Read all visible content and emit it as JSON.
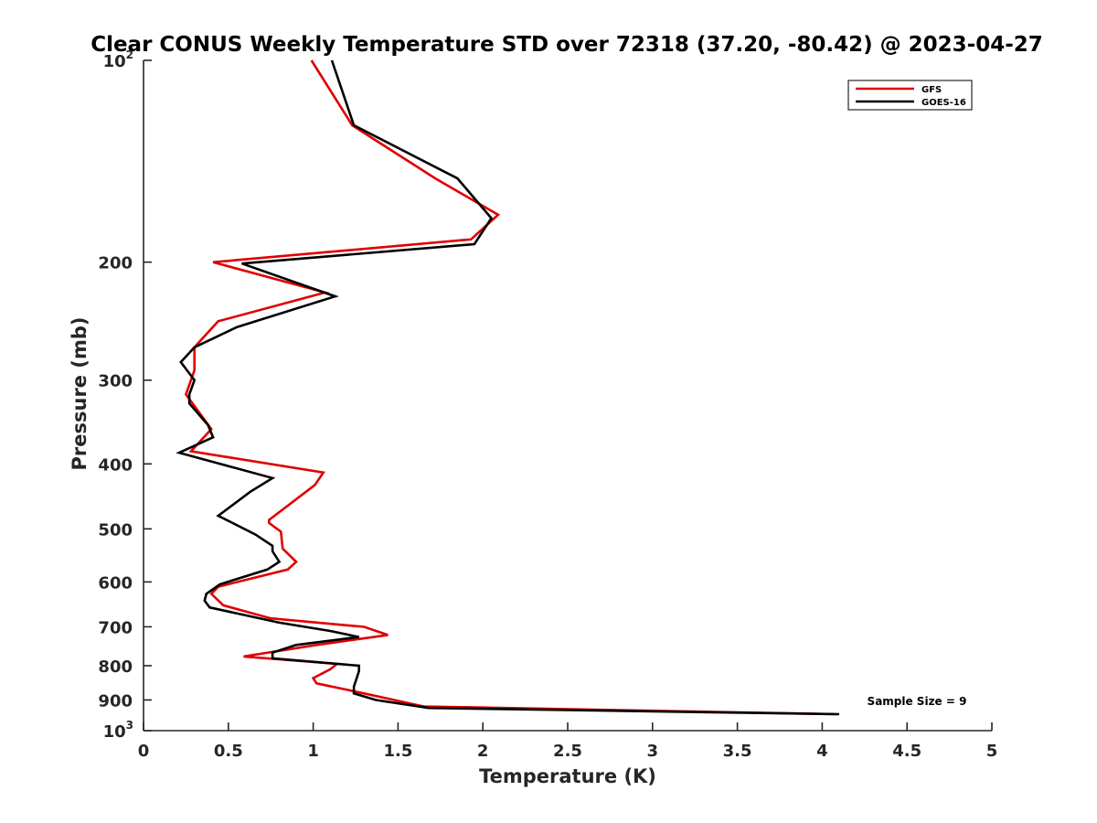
{
  "chart_data": {
    "type": "line",
    "title": "Clear CONUS Weekly Temperature STD over 72318 (37.20, -80.42) @ 2023-04-27",
    "xlabel": "Temperature (K)",
    "ylabel": "Pressure (mb)",
    "xlim": [
      0,
      5
    ],
    "ylim": [
      100,
      1000
    ],
    "y_scale": "log",
    "y_direction": "reversed",
    "x_ticks": [
      0,
      0.5,
      1,
      1.5,
      2,
      2.5,
      3,
      3.5,
      4,
      4.5,
      5
    ],
    "x_tick_labels": [
      "0",
      "0.5",
      "1",
      "1.5",
      "2",
      "2.5",
      "3",
      "3.5",
      "4",
      "4.5",
      "5"
    ],
    "y_ticks": [
      100,
      200,
      300,
      400,
      500,
      600,
      700,
      800,
      900,
      1000
    ],
    "y_tick_labels": [
      {
        "base": "10",
        "exp": "2"
      },
      {
        "base": "200"
      },
      {
        "base": "300"
      },
      {
        "base": "400"
      },
      {
        "base": "500"
      },
      {
        "base": "600"
      },
      {
        "base": "700"
      },
      {
        "base": "800"
      },
      {
        "base": "900"
      },
      {
        "base": "10",
        "exp": "3"
      }
    ],
    "grid": false,
    "legend_position": "top-right",
    "annotation": "Sample Size = 9",
    "series": [
      {
        "name": "GFS",
        "color": "#e00000",
        "points": [
          [
            0.99,
            100
          ],
          [
            1.23,
            125
          ],
          [
            1.72,
            150
          ],
          [
            2.09,
            170
          ],
          [
            1.93,
            185
          ],
          [
            0.41,
            200
          ],
          [
            1.07,
            222
          ],
          [
            0.44,
            245
          ],
          [
            0.3,
            268
          ],
          [
            0.3,
            290
          ],
          [
            0.25,
            315
          ],
          [
            0.4,
            355
          ],
          [
            0.28,
            383
          ],
          [
            1.06,
            412
          ],
          [
            1.01,
            430
          ],
          [
            0.74,
            485
          ],
          [
            0.74,
            490
          ],
          [
            0.81,
            505
          ],
          [
            0.82,
            535
          ],
          [
            0.9,
            560
          ],
          [
            0.85,
            575
          ],
          [
            0.44,
            610
          ],
          [
            0.4,
            625
          ],
          [
            0.47,
            650
          ],
          [
            0.75,
            680
          ],
          [
            1.3,
            700
          ],
          [
            1.44,
            720
          ],
          [
            1.02,
            745
          ],
          [
            0.59,
            775
          ],
          [
            1.14,
            795
          ],
          [
            1.1,
            810
          ],
          [
            1.0,
            835
          ],
          [
            1.02,
            850
          ],
          [
            1.3,
            880
          ],
          [
            1.65,
            920
          ],
          [
            4.08,
            945
          ]
        ]
      },
      {
        "name": "GOES-16",
        "color": "#000000",
        "points": [
          [
            1.11,
            100
          ],
          [
            1.24,
            125
          ],
          [
            1.85,
            150
          ],
          [
            2.05,
            172
          ],
          [
            1.95,
            188
          ],
          [
            0.58,
            201
          ],
          [
            1.13,
            225
          ],
          [
            0.55,
            250
          ],
          [
            0.3,
            268
          ],
          [
            0.22,
            282
          ],
          [
            0.3,
            300
          ],
          [
            0.27,
            315
          ],
          [
            0.27,
            325
          ],
          [
            0.38,
            350
          ],
          [
            0.41,
            365
          ],
          [
            0.21,
            385
          ],
          [
            0.76,
            420
          ],
          [
            0.63,
            440
          ],
          [
            0.44,
            478
          ],
          [
            0.66,
            510
          ],
          [
            0.76,
            530
          ],
          [
            0.76,
            540
          ],
          [
            0.8,
            560
          ],
          [
            0.73,
            575
          ],
          [
            0.45,
            605
          ],
          [
            0.37,
            625
          ],
          [
            0.36,
            640
          ],
          [
            0.39,
            655
          ],
          [
            0.8,
            690
          ],
          [
            1.1,
            710
          ],
          [
            1.27,
            725
          ],
          [
            0.9,
            745
          ],
          [
            0.76,
            765
          ],
          [
            0.76,
            780
          ],
          [
            1.27,
            800
          ],
          [
            1.27,
            815
          ],
          [
            1.24,
            860
          ],
          [
            1.24,
            880
          ],
          [
            1.37,
            900
          ],
          [
            1.68,
            925
          ],
          [
            4.1,
            945
          ]
        ]
      }
    ]
  }
}
